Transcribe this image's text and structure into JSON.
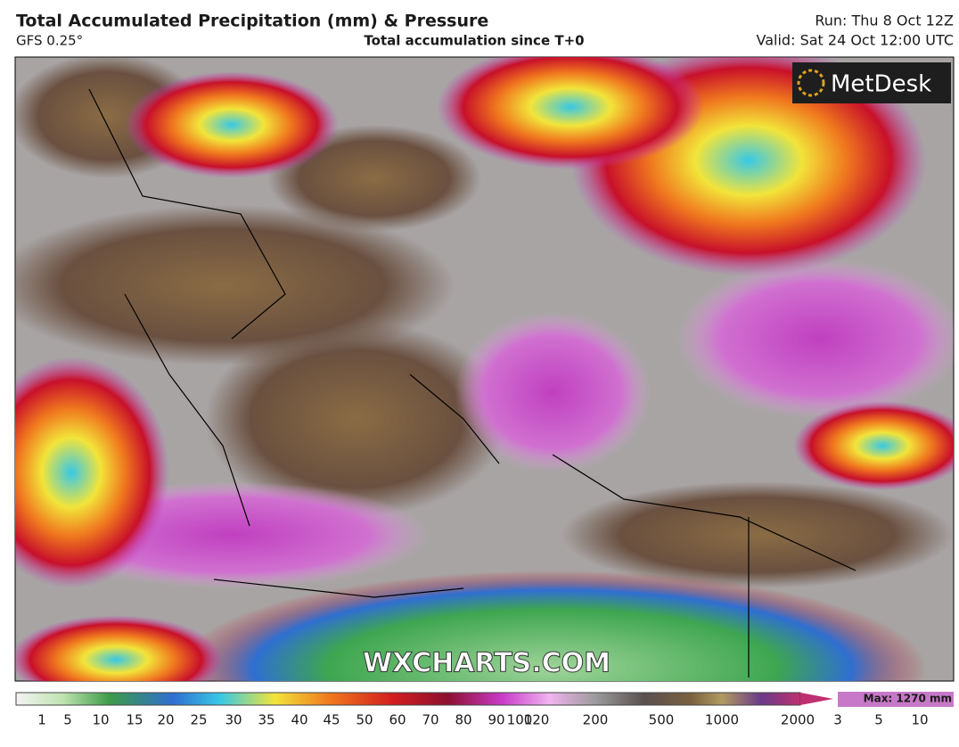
{
  "header": {
    "title": "Total Accumulated Precipitation (mm) & Pressure",
    "model": "GFS 0.25°",
    "subtitle": "Total accumulation since T+0",
    "run": "Run: Thu 8 Oct 12Z",
    "valid": "Valid: Sat 24 Oct 12:00 UTC"
  },
  "map": {
    "logo": "MetDesk",
    "watermark": "WXCHARTS.COM"
  },
  "legend": {
    "max": "Max: 1270 mm",
    "labels": [
      "1",
      "5",
      "10",
      "15",
      "20",
      "25",
      "30",
      "35",
      "40",
      "45",
      "50",
      "60",
      "70",
      "80",
      "90",
      "100",
      "120",
      "200",
      "500",
      "1000",
      "2000",
      "3",
      "5",
      "10"
    ]
  }
}
